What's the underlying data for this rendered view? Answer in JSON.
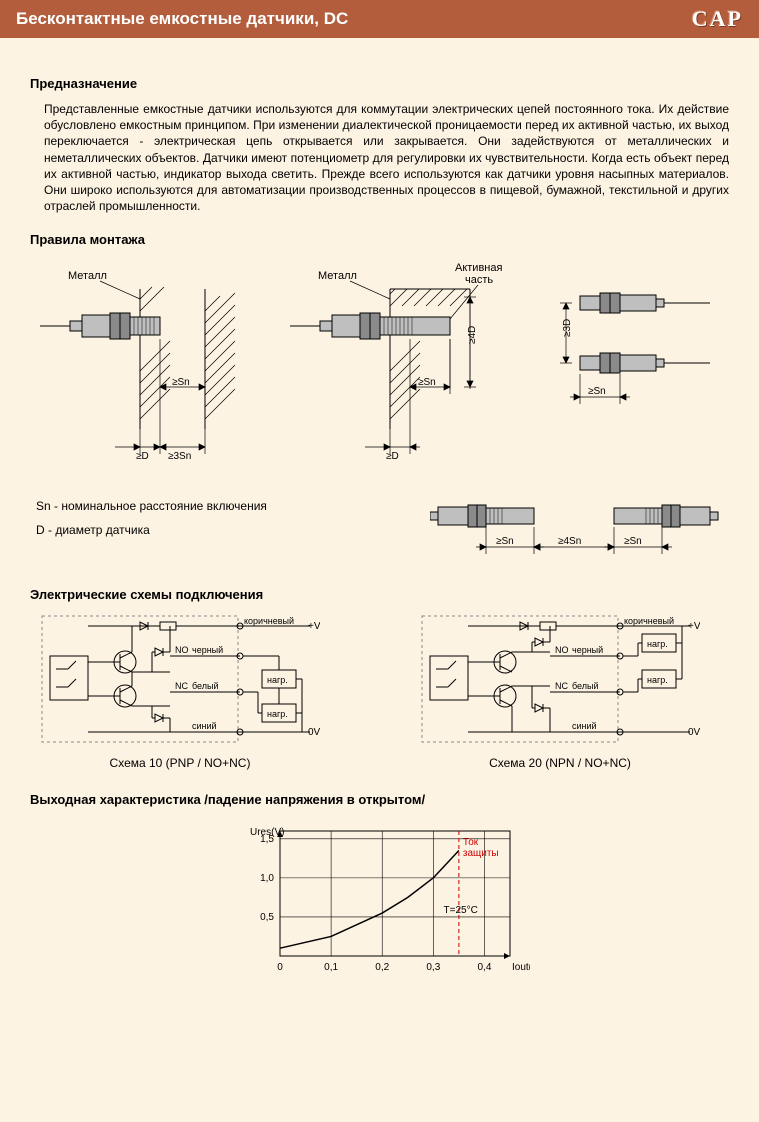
{
  "header": {
    "title": "Бесконтактные емкостные датчики, DC",
    "badge": "CAP"
  },
  "sections": {
    "purpose_title": "Предназначение",
    "purpose_text": "Представленные емкостные датчики используются для коммутации электрических цепей постоянного тока. Их действие обусловлено емкостным принципом. При изменении диалектической проницаемости перед их активной частью, их выход переключается - электрическая цепь открывается или закрывается. Они задействуются от металлических и неметаллических объектов. Датчики имеют потенциометр для регулировки их чувствительности. Когда есть объект перед их активной частью, индикатор выхода светить. Прежде всего используются как датчики уровня насыпных материалов. Они широко используются для автоматизации производственных процессов в пищевой, бумажной, текстильной и других отраслей промышленности.",
    "mounting_title": "Правила монтажа",
    "schemes_title": "Электрические схемы подключения",
    "output_title": "Выходная характеристика  /падение напряжения в открытом/"
  },
  "mounting": {
    "label_metal": "Металл",
    "label_active": "Активная\nчасть",
    "dim_sn": "≥Sn",
    "dim_d": "≥D",
    "dim_3sn": "≥3Sn",
    "dim_4d": "≥4D",
    "dim_3d": "≥3D",
    "dim_4sn": "≥4Sn",
    "colors": {
      "sensor_body": "#bfbfbf",
      "sensor_body_dark": "#8a8a8a",
      "line": "#000000",
      "hatch": "#000000"
    }
  },
  "legend": {
    "sn_line": "Sn - номинальное расстояние включения",
    "d_line": "D   - диаметр датчика"
  },
  "schemes": {
    "scheme1_caption": "Схема 10   (PNP / NO+NC)",
    "scheme2_caption": "Схема 20   (NPN / NO+NC)",
    "wire_brown": "коричневый",
    "wire_black": "черный",
    "wire_white": "белый",
    "wire_blue": "синий",
    "label_no": "NO",
    "label_nc": "NC",
    "label_load": "нагр.",
    "label_plusv": "+V",
    "label_0v": "0V",
    "colors": {
      "line": "#000000",
      "frame": "#8a8a8a"
    }
  },
  "chart": {
    "type": "line",
    "xlabel": "Iout(A)",
    "ylabel": "Ures(V)",
    "xlim": [
      0,
      0.45
    ],
    "ylim": [
      0,
      1.6
    ],
    "xticks": [
      0,
      0.1,
      0.2,
      0.3,
      0.4
    ],
    "xtick_labels": [
      "0",
      "0,1",
      "0,2",
      "0,3",
      "0,4"
    ],
    "yticks": [
      0.5,
      1.0,
      1.5
    ],
    "ytick_labels": [
      "0,5",
      "1,0",
      "1,5"
    ],
    "curve": [
      [
        0,
        0.1
      ],
      [
        0.1,
        0.25
      ],
      [
        0.2,
        0.55
      ],
      [
        0.25,
        0.75
      ],
      [
        0.3,
        1.0
      ],
      [
        0.35,
        1.35
      ]
    ],
    "protection_x": 0.35,
    "protection_label": "Ток\nзащиты",
    "temp_label": "T=25°C",
    "colors": {
      "axis": "#000000",
      "grid": "#000000",
      "curve": "#000000",
      "protection_line": "#cc0000",
      "protection_text": "#cc0000"
    },
    "line_width": 1.5,
    "font_size": 10
  }
}
